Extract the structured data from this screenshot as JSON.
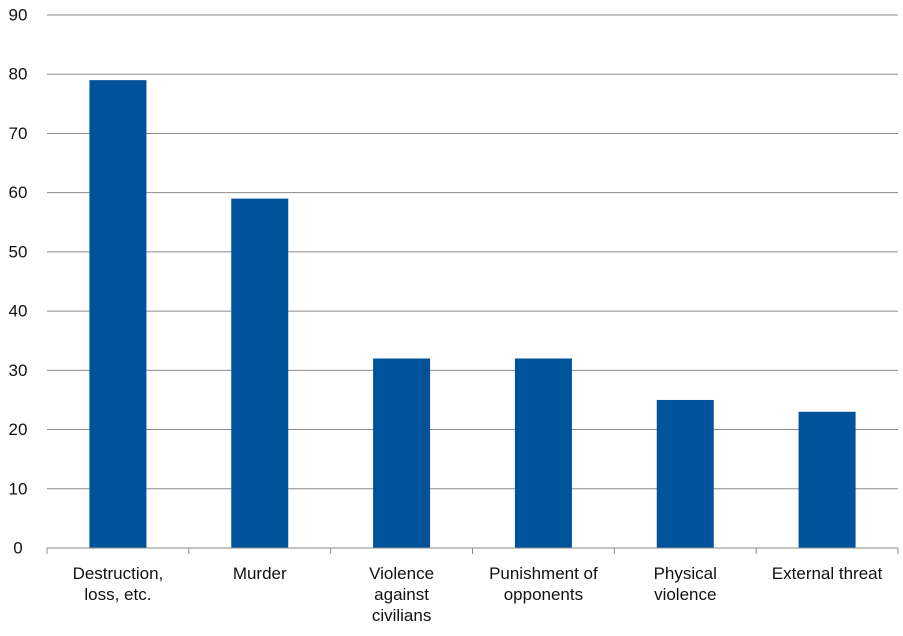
{
  "chart_data": {
    "type": "bar",
    "categories": [
      [
        "Destruction,",
        "loss, etc."
      ],
      [
        "Murder"
      ],
      [
        "Violence",
        "against",
        "civilians"
      ],
      [
        "Punishment of",
        "opponents"
      ],
      [
        "Physical",
        "violence"
      ],
      [
        "External threat"
      ]
    ],
    "values": [
      79,
      59,
      32,
      32,
      25,
      23
    ],
    "ylim": [
      0,
      90
    ],
    "yticks": [
      0,
      10,
      20,
      30,
      40,
      50,
      60,
      70,
      80,
      90
    ],
    "grid": true,
    "bar_color": "#00529b",
    "grid_color": "#8a8a8a"
  }
}
